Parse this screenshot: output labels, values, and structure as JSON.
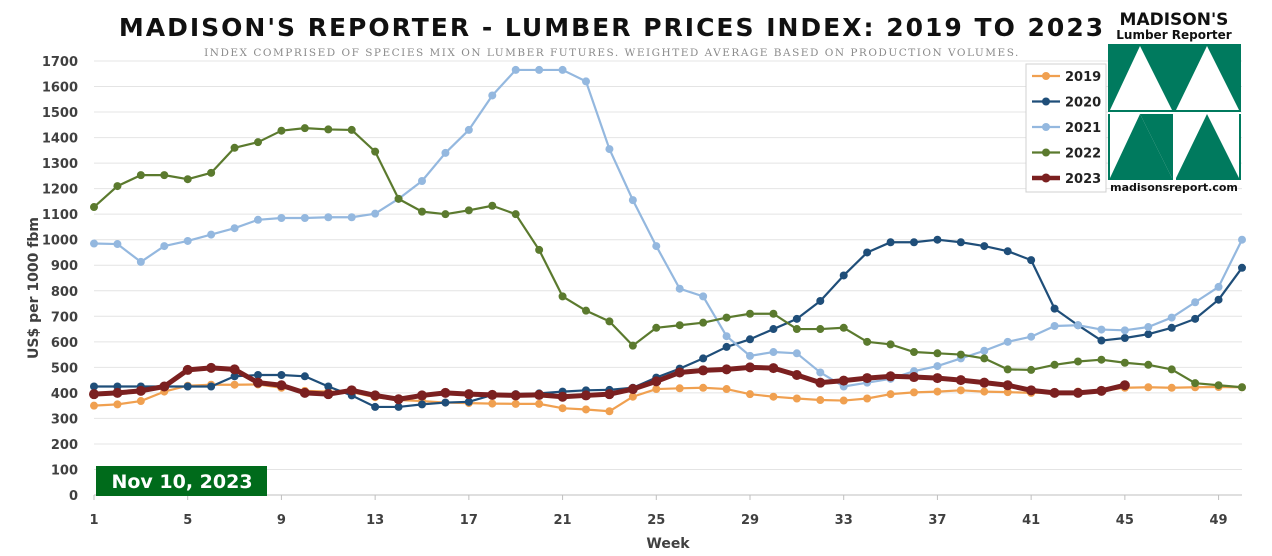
{
  "chart_data": {
    "type": "line",
    "title": "MADISON'S REPORTER - LUMBER PRICES INDEX: 2019 TO 2023",
    "subtitle": "INDEX COMPRISED OF SPECIES MIX ON LUMBER FUTURES. WEIGHTED AVERAGE BASED ON PRODUCTION VOLUMES.",
    "xlabel": "Week",
    "ylabel": "US$ per 1000 fbm",
    "xlim": [
      1,
      50
    ],
    "ylim": [
      0,
      1700
    ],
    "x_ticks": [
      "1",
      "5",
      "9",
      "13",
      "17",
      "21",
      "25",
      "29",
      "33",
      "37",
      "41",
      "45",
      "49"
    ],
    "y_ticks": [
      "0",
      "100",
      "200",
      "300",
      "400",
      "500",
      "600",
      "700",
      "800",
      "900",
      "1000",
      "1100",
      "1200",
      "1300",
      "1400",
      "1500",
      "1600",
      "1700"
    ],
    "grid": "horizontal",
    "legend_position": "top-right",
    "series": [
      {
        "name": "2019",
        "color": "#f0a050",
        "values": [
          350,
          355,
          368,
          405,
          428,
          432,
          432,
          433,
          420,
          408,
          405,
          403,
          383,
          372,
          368,
          362,
          360,
          358,
          357,
          357,
          340,
          335,
          328,
          385,
          415,
          418,
          420,
          415,
          395,
          385,
          378,
          372,
          370,
          378,
          395,
          402,
          405,
          410,
          405,
          403,
          400,
          402,
          405,
          408,
          420,
          422,
          420,
          422,
          423,
          422
        ]
      },
      {
        "name": "2020",
        "color": "#1f4e79",
        "values": [
          425,
          425,
          425,
          425,
          425,
          425,
          465,
          470,
          470,
          465,
          425,
          390,
          345,
          345,
          355,
          362,
          365,
          392,
          395,
          398,
          405,
          410,
          412,
          420,
          460,
          495,
          535,
          580,
          610,
          650,
          690,
          760,
          860,
          950,
          990,
          990,
          1000,
          990,
          975,
          955,
          920,
          730,
          665,
          605,
          615,
          630,
          655,
          690,
          765,
          890
        ]
      },
      {
        "name": "2021",
        "color": "#94b8df",
        "values": [
          985,
          983,
          913,
          975,
          995,
          1020,
          1045,
          1078,
          1085,
          1085,
          1088,
          1088,
          1102,
          1160,
          1230,
          1340,
          1430,
          1565,
          1665,
          1665,
          1665,
          1620,
          1355,
          1155,
          975,
          808,
          778,
          622,
          545,
          560,
          555,
          480,
          425,
          440,
          455,
          485,
          505,
          535,
          565,
          600,
          620,
          662,
          665,
          648,
          645,
          658,
          695,
          755,
          815,
          1000
        ]
      },
      {
        "name": "2022",
        "color": "#5b7a2e",
        "values": [
          1128,
          1210,
          1253,
          1253,
          1237,
          1262,
          1360,
          1382,
          1427,
          1437,
          1432,
          1430,
          1345,
          1160,
          1110,
          1100,
          1115,
          1133,
          1100,
          960,
          778,
          722,
          680,
          585,
          655,
          665,
          675,
          695,
          710,
          710,
          650,
          650,
          655,
          600,
          590,
          560,
          555,
          550,
          535,
          492,
          490,
          510,
          523,
          530,
          518,
          510,
          492,
          438,
          430,
          422
        ]
      },
      {
        "name": "2023",
        "color": "#7b2020",
        "values": [
          395,
          400,
          408,
          425,
          490,
          498,
          492,
          440,
          430,
          400,
          395,
          410,
          390,
          375,
          390,
          400,
          395,
          392,
          390,
          392,
          385,
          390,
          395,
          415,
          445,
          480,
          488,
          492,
          500,
          497,
          470,
          440,
          448,
          458,
          465,
          462,
          458,
          450,
          440,
          430,
          410,
          400,
          400,
          408,
          430
        ]
      }
    ],
    "annotations": [
      "Nov 10, 2023"
    ]
  },
  "logo": {
    "title": "MADISON'S",
    "subtitle": "Lumber Reporter",
    "url": "madisonsreport.com",
    "color": "#007a5e"
  }
}
